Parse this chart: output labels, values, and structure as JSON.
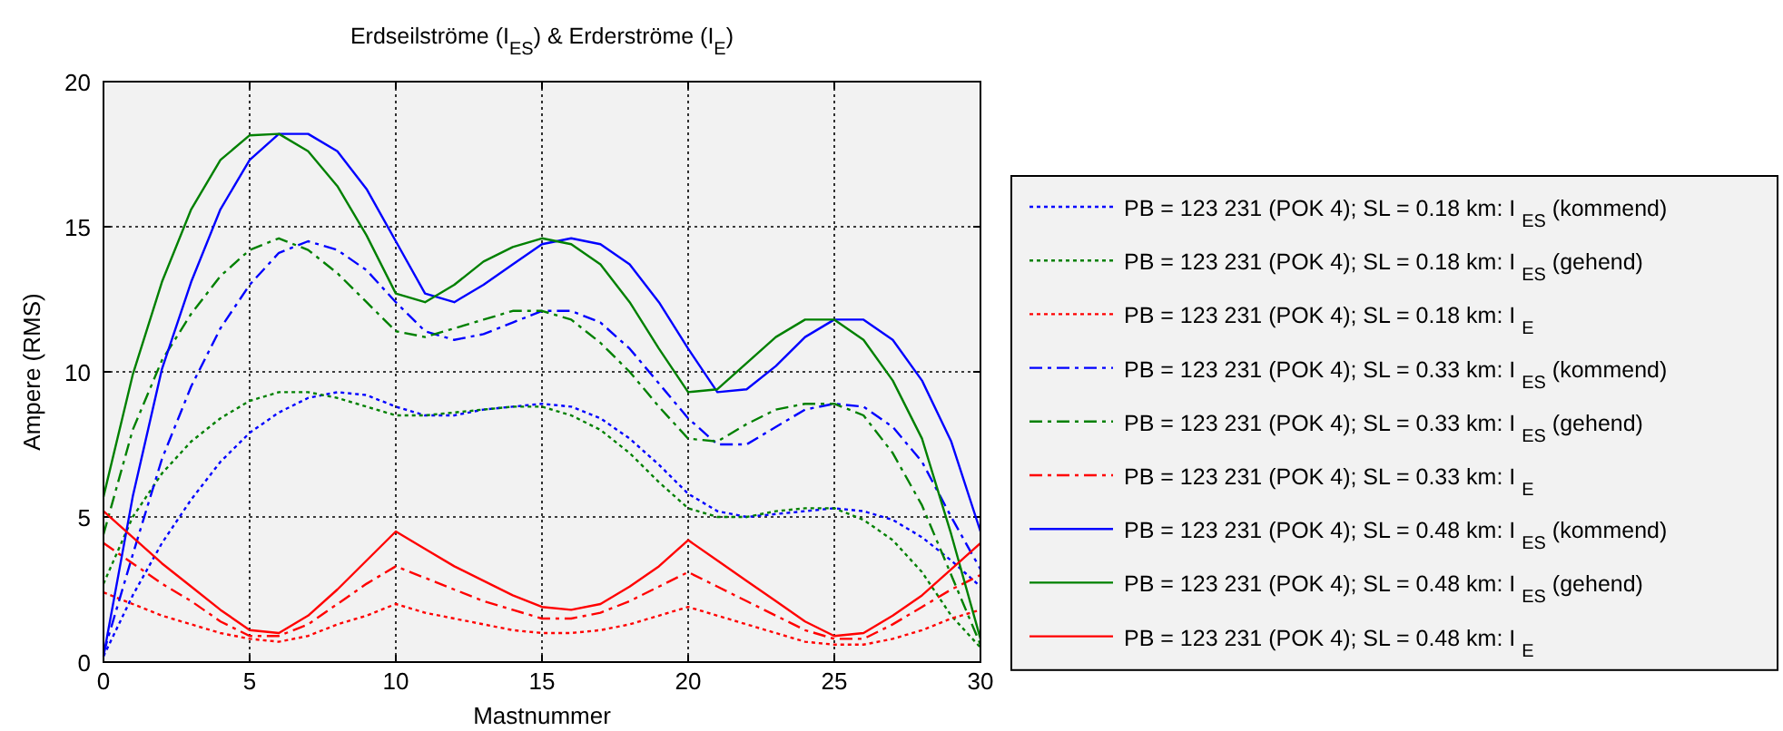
{
  "chart_data": {
    "type": "line",
    "title": "Erdseilströme (I$_{ES}$) & Erderströme (I$_{E}$)",
    "xlabel": "Mastnummer",
    "ylabel": "Ampere (RMS)",
    "x": [
      0,
      1,
      2,
      3,
      4,
      5,
      6,
      7,
      8,
      9,
      10,
      11,
      12,
      13,
      14,
      15,
      16,
      17,
      18,
      19,
      20,
      21,
      22,
      23,
      24,
      25,
      26,
      27,
      28,
      29,
      30
    ],
    "xlim": [
      0,
      30
    ],
    "ylim": [
      0,
      20
    ],
    "xticks": [
      0,
      5,
      10,
      15,
      20,
      25,
      30
    ],
    "yticks": [
      0,
      5,
      10,
      15,
      20
    ],
    "grid": true,
    "legend": "right",
    "marker": "none",
    "series": [
      {
        "name": "PB = 123 231 (POK 4); SL = 0.18 km: I $_{ES}$ (kommend)",
        "color": "#0000ff",
        "line_style": "dotted",
        "values": [
          0.2,
          2.3,
          4.1,
          5.6,
          6.9,
          7.9,
          8.6,
          9.1,
          9.3,
          9.2,
          8.8,
          8.5,
          8.5,
          8.7,
          8.8,
          8.9,
          8.8,
          8.4,
          7.7,
          6.8,
          5.8,
          5.2,
          5.0,
          5.1,
          5.2,
          5.3,
          5.2,
          4.9,
          4.3,
          3.5,
          2.6
        ]
      },
      {
        "name": "PB = 123 231 (POK 4); SL = 0.18 km: I $_{ES}$ (gehend)",
        "color": "#008000",
        "line_style": "dotted",
        "values": [
          2.7,
          5.0,
          6.5,
          7.6,
          8.4,
          9.0,
          9.3,
          9.3,
          9.1,
          8.8,
          8.5,
          8.5,
          8.6,
          8.7,
          8.8,
          8.8,
          8.5,
          8.0,
          7.2,
          6.2,
          5.3,
          5.0,
          5.0,
          5.2,
          5.3,
          5.3,
          4.9,
          4.2,
          3.1,
          1.6,
          0.5
        ]
      },
      {
        "name": "PB = 123 231 (POK 4); SL = 0.18 km: I $_{E}$",
        "color": "#ff0000",
        "line_style": "dotted",
        "values": [
          2.4,
          2.0,
          1.6,
          1.3,
          1.0,
          0.8,
          0.7,
          0.9,
          1.3,
          1.6,
          2.0,
          1.7,
          1.5,
          1.3,
          1.1,
          1.0,
          1.0,
          1.1,
          1.3,
          1.6,
          1.9,
          1.6,
          1.3,
          1.0,
          0.7,
          0.6,
          0.6,
          0.8,
          1.1,
          1.5,
          1.8
        ]
      },
      {
        "name": "PB = 123 231 (POK 4); SL = 0.33 km: I $_{ES}$ (kommend)",
        "color": "#0000ff",
        "line_style": "dashdot",
        "values": [
          0.3,
          3.7,
          7.0,
          9.5,
          11.5,
          13.0,
          14.1,
          14.5,
          14.2,
          13.5,
          12.4,
          11.4,
          11.1,
          11.3,
          11.7,
          12.1,
          12.1,
          11.7,
          10.8,
          9.6,
          8.4,
          7.5,
          7.5,
          8.1,
          8.7,
          8.9,
          8.8,
          8.1,
          6.9,
          5.0,
          3.2
        ]
      },
      {
        "name": "PB = 123 231 (POK 4); SL = 0.33 km: I $_{ES}$ (gehend)",
        "color": "#008000",
        "line_style": "dashdot",
        "values": [
          4.4,
          8.0,
          10.4,
          12.0,
          13.3,
          14.2,
          14.6,
          14.2,
          13.4,
          12.4,
          11.4,
          11.2,
          11.5,
          11.8,
          12.1,
          12.1,
          11.8,
          11.0,
          10.0,
          8.8,
          7.7,
          7.6,
          8.2,
          8.7,
          8.9,
          8.9,
          8.5,
          7.2,
          5.4,
          3.0,
          0.6
        ]
      },
      {
        "name": "PB = 123 231 (POK 4); SL = 0.33 km: I $_{E}$",
        "color": "#ff0000",
        "line_style": "dashdot",
        "values": [
          4.1,
          3.4,
          2.7,
          2.1,
          1.4,
          0.9,
          0.9,
          1.3,
          2.0,
          2.7,
          3.3,
          2.9,
          2.5,
          2.1,
          1.8,
          1.5,
          1.5,
          1.7,
          2.1,
          2.6,
          3.1,
          2.6,
          2.1,
          1.6,
          1.1,
          0.8,
          0.8,
          1.3,
          1.9,
          2.5,
          3.0
        ]
      },
      {
        "name": "PB = 123 231 (POK 4); SL = 0.48 km: I $_{ES}$ (kommend)",
        "color": "#0000ff",
        "line_style": "solid",
        "values": [
          0.2,
          5.7,
          10.1,
          13.1,
          15.6,
          17.3,
          18.2,
          18.2,
          17.6,
          16.3,
          14.5,
          12.7,
          12.4,
          13.0,
          13.7,
          14.4,
          14.6,
          14.4,
          13.7,
          12.4,
          10.8,
          9.3,
          9.4,
          10.2,
          11.2,
          11.8,
          11.8,
          11.1,
          9.7,
          7.6,
          4.5
        ]
      },
      {
        "name": "PB = 123 231 (POK 4); SL = 0.48 km: I $_{ES}$ (gehend)",
        "color": "#008000",
        "line_style": "solid",
        "values": [
          5.7,
          9.9,
          13.1,
          15.6,
          17.3,
          18.15,
          18.2,
          17.6,
          16.4,
          14.7,
          12.7,
          12.4,
          13.0,
          13.8,
          14.3,
          14.6,
          14.4,
          13.7,
          12.4,
          10.8,
          9.3,
          9.4,
          10.3,
          11.2,
          11.8,
          11.8,
          11.1,
          9.7,
          7.7,
          4.4,
          0.8
        ]
      },
      {
        "name": "PB = 123 231 (POK 4); SL = 0.48 km: I $_{E}$",
        "color": "#ff0000",
        "line_style": "solid",
        "values": [
          5.2,
          4.3,
          3.4,
          2.6,
          1.8,
          1.1,
          1.0,
          1.6,
          2.5,
          3.5,
          4.5,
          3.9,
          3.3,
          2.8,
          2.3,
          1.9,
          1.8,
          2.0,
          2.6,
          3.3,
          4.2,
          3.5,
          2.8,
          2.1,
          1.4,
          0.9,
          1.0,
          1.6,
          2.3,
          3.2,
          4.1
        ]
      }
    ]
  }
}
